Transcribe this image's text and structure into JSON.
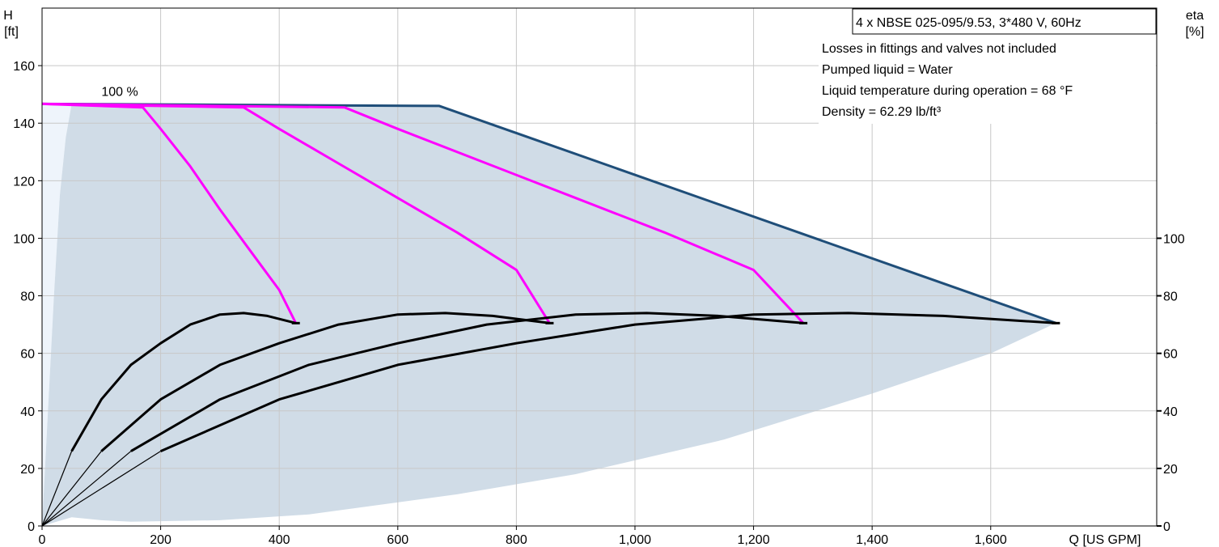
{
  "chart_data": {
    "type": "line",
    "title": "4 x NBSE 025-095/9.53, 3*480 V, 60Hz",
    "notes": [
      "Losses in fittings and valves not included",
      "Pumped liquid = Water",
      "Liquid temperature during operation = 68 °F",
      "Density = 62.29 lb/ft³"
    ],
    "speed_label": "100 %",
    "y_left_label": [
      "H",
      "[ft]"
    ],
    "y_right_label": [
      "eta",
      "[%]"
    ],
    "x_label": "Q [US GPM]",
    "x_ticks": [
      {
        "value": 0,
        "label": "0"
      },
      {
        "value": 200,
        "label": "200"
      },
      {
        "value": 400,
        "label": "400"
      },
      {
        "value": 600,
        "label": "600"
      },
      {
        "value": 800,
        "label": "800"
      },
      {
        "value": 1000,
        "label": "1,000"
      },
      {
        "value": 1200,
        "label": "1,200"
      },
      {
        "value": 1400,
        "label": "1,400"
      },
      {
        "value": 1600,
        "label": "1,600"
      }
    ],
    "y_ticks": [
      0,
      20,
      40,
      60,
      80,
      100,
      120,
      140,
      160
    ],
    "eta_ticks": [
      0,
      20,
      40,
      60,
      80,
      100
    ],
    "xlim": [
      0,
      1880
    ],
    "ylim": [
      0,
      180
    ],
    "grid": true,
    "colors": {
      "envelope": "#D0DCE7",
      "envelope_low_flow": "#EEF4FB",
      "max_curve": "#1F4E79",
      "head_curves": "#FF00FF",
      "eta_curves": "#000000",
      "grid": "#C8C8C8"
    },
    "envelope": {
      "upper": [
        [
          50,
          146.7
        ],
        [
          670,
          146
        ],
        [
          1710,
          70.5
        ]
      ],
      "lower": [
        [
          0,
          0
        ],
        [
          50,
          3
        ],
        [
          100,
          2
        ],
        [
          150,
          1.5
        ],
        [
          300,
          2
        ],
        [
          450,
          4
        ],
        [
          700,
          11
        ],
        [
          900,
          18
        ],
        [
          1150,
          30
        ],
        [
          1400,
          46
        ],
        [
          1600,
          60
        ],
        [
          1710,
          70.5
        ]
      ],
      "low_flow_edge": [
        [
          0,
          0
        ],
        [
          10,
          40
        ],
        [
          20,
          80
        ],
        [
          30,
          115
        ],
        [
          40,
          135
        ],
        [
          50,
          146.7
        ]
      ]
    },
    "series": [
      {
        "name": "",
        "kind": "head",
        "points": [
          [
            0,
            146.7
          ],
          [
            670,
            146
          ],
          [
            1710,
            70.5
          ]
        ]
      },
      {
        "name": "",
        "kind": "head",
        "points": [
          [
            0,
            146.7
          ],
          [
            170,
            145.5
          ],
          [
            200,
            138
          ],
          [
            250,
            125
          ],
          [
            300,
            110
          ],
          [
            350,
            96
          ],
          [
            400,
            82
          ],
          [
            428,
            70.5
          ]
        ]
      },
      {
        "name": "",
        "kind": "head",
        "points": [
          [
            0,
            146.7
          ],
          [
            340,
            145.5
          ],
          [
            400,
            138
          ],
          [
            500,
            126
          ],
          [
            600,
            114
          ],
          [
            700,
            102
          ],
          [
            800,
            89
          ],
          [
            856,
            70.5
          ]
        ]
      },
      {
        "name": "",
        "kind": "head",
        "points": [
          [
            0,
            146.7
          ],
          [
            510,
            145.5
          ],
          [
            600,
            138
          ],
          [
            750,
            126
          ],
          [
            900,
            114
          ],
          [
            1050,
            102
          ],
          [
            1200,
            89
          ],
          [
            1284,
            70.5
          ]
        ]
      },
      {
        "name": "",
        "kind": "eta",
        "points": [
          [
            0,
            0
          ],
          [
            50,
            26
          ],
          [
            100,
            44
          ],
          [
            150,
            56
          ],
          [
            200,
            63.5
          ],
          [
            250,
            70
          ],
          [
            300,
            73.5
          ],
          [
            340,
            74
          ],
          [
            380,
            73
          ],
          [
            428,
            70.5
          ]
        ]
      },
      {
        "name": "",
        "kind": "eta",
        "points": [
          [
            0,
            0
          ],
          [
            100,
            26
          ],
          [
            200,
            44
          ],
          [
            300,
            56
          ],
          [
            400,
            63.5
          ],
          [
            500,
            70
          ],
          [
            600,
            73.5
          ],
          [
            680,
            74
          ],
          [
            760,
            73
          ],
          [
            856,
            70.5
          ]
        ]
      },
      {
        "name": "",
        "kind": "eta",
        "points": [
          [
            0,
            0
          ],
          [
            150,
            26
          ],
          [
            300,
            44
          ],
          [
            450,
            56
          ],
          [
            600,
            63.5
          ],
          [
            750,
            70
          ],
          [
            900,
            73.5
          ],
          [
            1020,
            74
          ],
          [
            1140,
            73
          ],
          [
            1284,
            70.5
          ]
        ]
      },
      {
        "name": "",
        "kind": "eta",
        "points": [
          [
            0,
            0
          ],
          [
            200,
            26
          ],
          [
            400,
            44
          ],
          [
            600,
            56
          ],
          [
            800,
            63.5
          ],
          [
            1000,
            70
          ],
          [
            1200,
            73.5
          ],
          [
            1360,
            74
          ],
          [
            1520,
            73
          ],
          [
            1710,
            70.5
          ]
        ]
      }
    ]
  }
}
